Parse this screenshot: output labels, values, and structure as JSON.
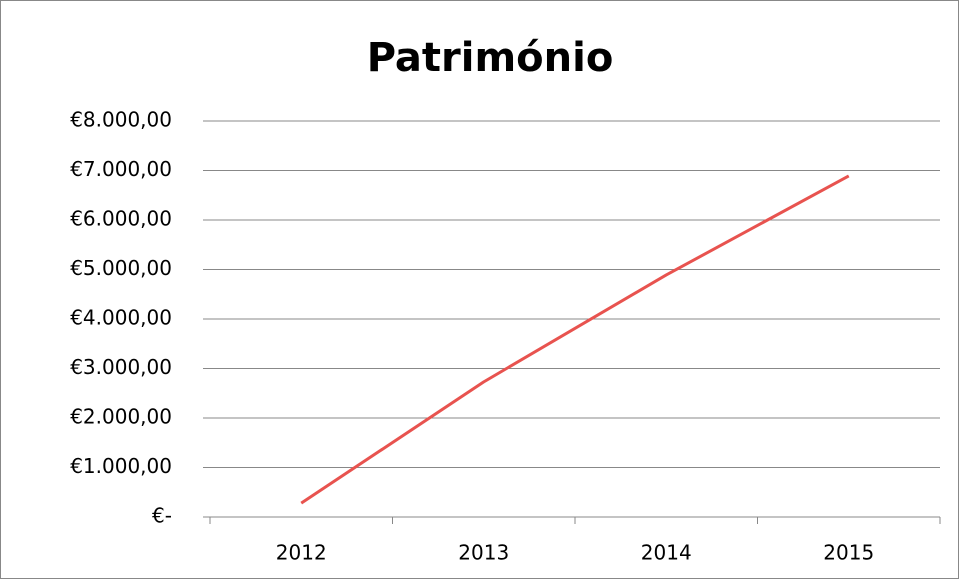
{
  "chart_data": {
    "type": "line",
    "title": "Património",
    "categories": [
      "2012",
      "2013",
      "2014",
      "2015"
    ],
    "series": [
      {
        "name": "Património",
        "color": "#e8534f",
        "values": [
          280,
          2730,
          4890,
          6890
        ]
      }
    ],
    "ylim": [
      0,
      8000
    ],
    "yticks": [
      {
        "value": 0,
        "label": "€-"
      },
      {
        "value": 1000,
        "label": "€1.000,00"
      },
      {
        "value": 2000,
        "label": "€2.000,00"
      },
      {
        "value": 3000,
        "label": "€3.000,00"
      },
      {
        "value": 4000,
        "label": "€4.000,00"
      },
      {
        "value": 5000,
        "label": "€5.000,00"
      },
      {
        "value": 6000,
        "label": "€6.000,00"
      },
      {
        "value": 7000,
        "label": "€7.000,00"
      },
      {
        "value": 8000,
        "label": "€8.000,00"
      }
    ],
    "grid": true
  }
}
